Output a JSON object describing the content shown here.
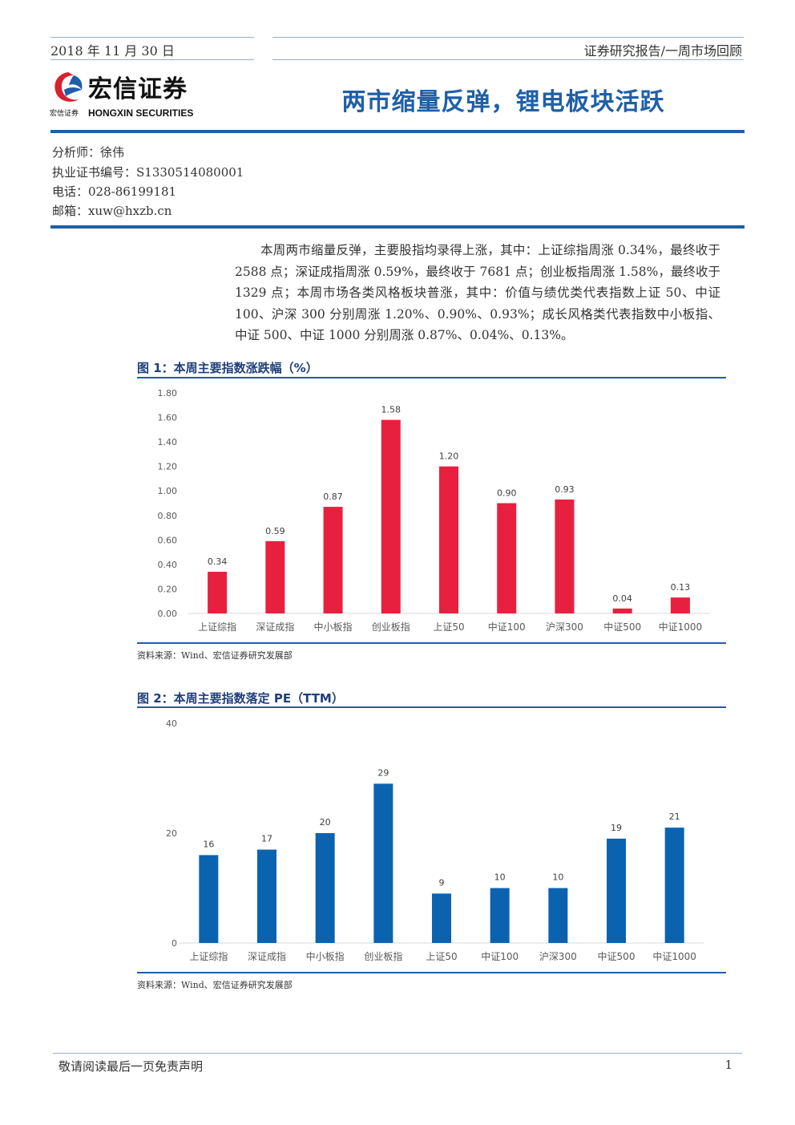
{
  "header": {
    "date": "2018 年 11 月 30 日",
    "report_type": "证券研究报告/一周市场回顾"
  },
  "logo": {
    "name_cn": "宏信证券",
    "name_en": "HONGXIN SECURITIES",
    "small_cn": "宏信证券"
  },
  "title": "两市缩量反弹，锂电板块活跃",
  "analyst": {
    "name_line": "分析师：徐伟",
    "cert_line": "执业证书编号：S1330514080001",
    "phone_line": "电话：028-86199181",
    "email_line": "邮箱：xuw@hxzb.cn"
  },
  "summary": "本周两市缩量反弹，主要股指均录得上涨，其中：上证综指周涨 0.34%，最终收于 2588 点；深证成指周涨 0.59%，最终收于 7681 点；创业板指周涨 1.58%，最终收于 1329 点；本周市场各类风格板块普涨，其中：价值与绩优类代表指数上证 50、中证 100、沪深 300 分别周涨 1.20%、0.90%、0.93%；成长风格类代表指数中小板指、中证 500、中证 1000 分别周涨 0.87%、0.04%、0.13%。",
  "figure1": {
    "title": "图 1：本周主要指数涨跌幅（%）",
    "source": "资料来源：Wind、宏信证券研究发展部"
  },
  "figure2": {
    "title": "图 2：本周主要指数落定 PE（TTM）",
    "source": "资料来源：Wind、宏信证券研究发展部"
  },
  "chart_data": [
    {
      "type": "bar",
      "categories": [
        "上证综指",
        "深证成指",
        "中小板指",
        "创业板指",
        "上证50",
        "中证100",
        "沪深300",
        "中证500",
        "中证1000"
      ],
      "values": [
        0.34,
        0.59,
        0.87,
        1.58,
        1.2,
        0.9,
        0.93,
        0.04,
        0.13
      ],
      "value_labels": [
        "0.34",
        "0.59",
        "0.87",
        "1.58",
        "1.20",
        "0.90",
        "0.93",
        "0.04",
        "0.13"
      ],
      "yticks": [
        "0.00",
        "0.20",
        "0.40",
        "0.60",
        "0.80",
        "1.00",
        "1.20",
        "1.40",
        "1.60",
        "1.80"
      ],
      "ylim": [
        0,
        1.8
      ],
      "color": "#e8203f",
      "grid": false
    },
    {
      "type": "bar",
      "categories": [
        "上证综指",
        "深证成指",
        "中小板指",
        "创业板指",
        "上证50",
        "中证100",
        "沪深300",
        "中证500",
        "中证1000"
      ],
      "values": [
        16,
        17,
        20,
        29,
        9,
        10,
        10,
        19,
        21
      ],
      "value_labels": [
        "16",
        "17",
        "20",
        "29",
        "9",
        "10",
        "10",
        "19",
        "21"
      ],
      "yticks": [
        "0",
        "20",
        "40"
      ],
      "ylim": [
        0,
        40
      ],
      "color": "#0b63b0",
      "grid": false
    }
  ],
  "footer": {
    "disclaimer": "敬请阅读最后一页免责声明",
    "page": "1"
  }
}
